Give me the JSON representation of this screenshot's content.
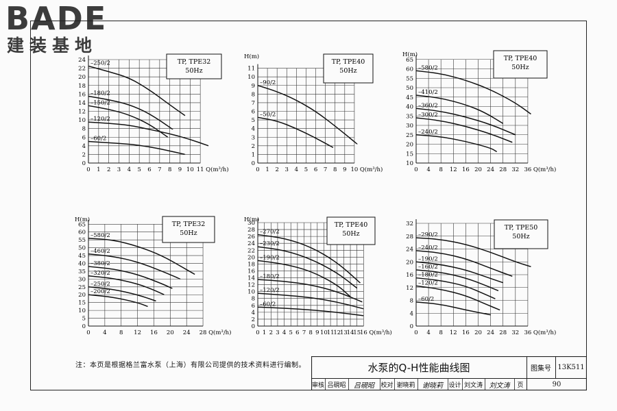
{
  "logo": {
    "main": "BADE",
    "sub": "建装基地"
  },
  "note": "注：本页是根据格兰富水泵（上海）有限公司提供的技术资料进行编制。",
  "title_block": {
    "title": "水泵的Q-H性能曲线图",
    "atlas_label": "图集号",
    "atlas_value": "13K511",
    "row": [
      {
        "label": "审核",
        "name": "吕硯昭",
        "signature": "吕硯昭"
      },
      {
        "label": "校对",
        "name": "谢晓莉",
        "signature": "谢晓莉"
      },
      {
        "label": "设计",
        "name": "刘文涛",
        "signature": "刘文涛"
      }
    ],
    "page_label": "页",
    "page_value": "90"
  },
  "chart_data": [
    {
      "type": "line",
      "legend": [
        "TP, TPE32",
        "50Hz"
      ],
      "ylabel": "",
      "xlabel": "Q(m³/h)",
      "xlim": [
        0,
        12
      ],
      "ylim": [
        0,
        24
      ],
      "xticks": [
        0,
        1,
        2,
        3,
        4,
        5,
        6,
        7,
        8,
        9,
        10,
        11
      ],
      "yticks": [
        0,
        2,
        4,
        6,
        8,
        10,
        12,
        14,
        16,
        18,
        20,
        22,
        24
      ],
      "series": [
        {
          "name": "250/2",
          "x": [
            0,
            2,
            4,
            6,
            8,
            9.5
          ],
          "y": [
            22.5,
            21.2,
            19.8,
            17,
            13.5,
            11
          ]
        },
        {
          "name": "180/2",
          "x": [
            0,
            2,
            4,
            6,
            8.3
          ],
          "y": [
            15.5,
            14.7,
            13.6,
            11.5,
            7.8
          ]
        },
        {
          "name": "150/2",
          "x": [
            0,
            2,
            4,
            6,
            7.8
          ],
          "y": [
            13.3,
            12.5,
            11.2,
            9,
            6
          ]
        },
        {
          "name": "120/2",
          "x": [
            0,
            2,
            4,
            6,
            8,
            10,
            11.8
          ],
          "y": [
            9.5,
            9.2,
            8.8,
            7.8,
            6.8,
            5.5,
            4
          ]
        },
        {
          "name": "60/2",
          "x": [
            0,
            2,
            4,
            6,
            8,
            9.5
          ],
          "y": [
            5,
            4.7,
            4.4,
            3.8,
            2.8,
            2
          ]
        }
      ]
    },
    {
      "type": "line",
      "legend": [
        "TP, TPE40",
        "50Hz"
      ],
      "ylabel": "H(m)",
      "xlabel": "Q(m³/h)",
      "xlim": [
        0,
        11
      ],
      "ylim": [
        0,
        12
      ],
      "xticks": [
        0,
        1,
        2,
        3,
        4,
        5,
        6,
        7,
        8,
        9,
        10
      ],
      "yticks": [
        0,
        1,
        2,
        3,
        4,
        5,
        6,
        7,
        8,
        9,
        10,
        11
      ],
      "series": [
        {
          "name": "90/2",
          "x": [
            0,
            2,
            4,
            6,
            8,
            10.3
          ],
          "y": [
            9,
            8.3,
            7.3,
            6,
            4.3,
            2.2
          ]
        },
        {
          "name": "50/2",
          "x": [
            0,
            2,
            4,
            6,
            7.8
          ],
          "y": [
            5.3,
            4.9,
            4,
            2.9,
            1.8
          ]
        }
      ]
    },
    {
      "type": "line",
      "legend": [
        "TP, TPE40",
        "50Hz"
      ],
      "ylabel": "H(m)",
      "xlabel": "Q(m³/h)",
      "xlim": [
        0,
        40
      ],
      "ylim": [
        10,
        66
      ],
      "xticks": [
        0,
        4,
        8,
        12,
        16,
        20,
        24,
        28,
        32,
        36
      ],
      "yticks": [
        10,
        15,
        20,
        25,
        30,
        35,
        40,
        45,
        50,
        55,
        60,
        65
      ],
      "series": [
        {
          "name": "580/2",
          "x": [
            0,
            8,
            16,
            24,
            32,
            37
          ],
          "y": [
            59,
            57.5,
            54,
            49,
            42,
            36
          ]
        },
        {
          "name": "410/2",
          "x": [
            0,
            8,
            16,
            22,
            28
          ],
          "y": [
            46,
            44.5,
            41,
            37,
            31
          ]
        },
        {
          "name": "360/2",
          "x": [
            0,
            8,
            16,
            24,
            32
          ],
          "y": [
            39,
            37.5,
            34.5,
            30.5,
            25
          ]
        },
        {
          "name": "300/2",
          "x": [
            0,
            8,
            16,
            24,
            31
          ],
          "y": [
            34,
            32.5,
            29.5,
            25.5,
            21
          ]
        },
        {
          "name": "240/2",
          "x": [
            0,
            8,
            16,
            24,
            26
          ],
          "y": [
            25,
            24,
            21.5,
            18,
            16
          ]
        }
      ]
    },
    {
      "type": "line",
      "legend": [
        "TP, TPE32",
        "50Hz"
      ],
      "ylabel": "H(m)",
      "xlabel": "Q(m³/h)",
      "xlim": [
        0,
        30
      ],
      "ylim": [
        0,
        66
      ],
      "xticks": [
        0,
        4,
        8,
        12,
        16,
        20,
        24,
        28
      ],
      "yticks": [
        0,
        5,
        10,
        15,
        20,
        25,
        30,
        35,
        40,
        45,
        50,
        55,
        60,
        65
      ],
      "series": [
        {
          "name": "580/2",
          "x": [
            0,
            6,
            12,
            18,
            24,
            26
          ],
          "y": [
            56,
            55,
            51,
            45,
            36,
            33
          ]
        },
        {
          "name": "460/2",
          "x": [
            0,
            6,
            12,
            18,
            22.5
          ],
          "y": [
            46,
            44.5,
            41,
            35,
            30
          ]
        },
        {
          "name": "380/2",
          "x": [
            0,
            6,
            12,
            18,
            20.5
          ],
          "y": [
            38,
            36.5,
            33,
            27,
            24
          ]
        },
        {
          "name": "320/2",
          "x": [
            0,
            6,
            12,
            16,
            18.5
          ],
          "y": [
            32,
            30.5,
            27,
            23,
            20
          ]
        },
        {
          "name": "250/2",
          "x": [
            0,
            6,
            12,
            16.5
          ],
          "y": [
            25,
            23.5,
            20,
            16
          ]
        },
        {
          "name": "200/2",
          "x": [
            0,
            6,
            12,
            14.5
          ],
          "y": [
            20,
            18.5,
            15,
            12.5
          ]
        }
      ]
    },
    {
      "type": "line",
      "legend": [
        "TP, TPE40",
        "50Hz"
      ],
      "ylabel": "H(m)",
      "xlabel": "Q(m³/h)",
      "xlim": [
        0,
        17
      ],
      "ylim": [
        0,
        30
      ],
      "xticks": [
        0,
        1,
        2,
        3,
        4,
        5,
        6,
        7,
        8,
        9,
        10,
        11,
        12,
        13,
        14,
        15,
        16
      ],
      "yticks": [
        0,
        2,
        4,
        6,
        8,
        10,
        12,
        14,
        16,
        18,
        20,
        22,
        24,
        26,
        28,
        30
      ],
      "series": [
        {
          "name": "270/2",
          "x": [
            0,
            4,
            8,
            12,
            15.5
          ],
          "y": [
            26.5,
            25.5,
            23,
            18.5,
            12.5
          ]
        },
        {
          "name": "230/2",
          "x": [
            0,
            4,
            8,
            12,
            15
          ],
          "y": [
            23,
            22,
            19.5,
            15.5,
            11
          ]
        },
        {
          "name": "190/2",
          "x": [
            0,
            4,
            8,
            12,
            14
          ],
          "y": [
            19,
            18,
            16,
            12,
            8.5
          ]
        },
        {
          "name": "180/2",
          "x": [
            0,
            4,
            8,
            12,
            15.8
          ],
          "y": [
            13.5,
            13,
            12,
            10,
            7
          ]
        },
        {
          "name": "120/2",
          "x": [
            0,
            4,
            8,
            12,
            16
          ],
          "y": [
            9.5,
            9,
            8.3,
            7,
            5
          ]
        },
        {
          "name": "60/2",
          "x": [
            0,
            4,
            8,
            12,
            16
          ],
          "y": [
            5.5,
            5.2,
            4.7,
            4,
            3
          ]
        }
      ]
    },
    {
      "type": "line",
      "legend": [
        "TP, TPE50",
        "50Hz"
      ],
      "ylabel": "",
      "xlabel": "Q(m³/h)",
      "xlim": [
        0,
        40
      ],
      "ylim": [
        0,
        32
      ],
      "xticks": [
        0,
        4,
        8,
        12,
        16,
        20,
        24,
        28,
        32,
        36
      ],
      "yticks": [
        0,
        4,
        8,
        12,
        16,
        20,
        24,
        28,
        32
      ],
      "series": [
        {
          "name": "290/2",
          "x": [
            0,
            8,
            16,
            24,
            32,
            37
          ],
          "y": [
            27.5,
            27,
            25.5,
            23,
            20,
            18.5
          ]
        },
        {
          "name": "240/2",
          "x": [
            0,
            8,
            16,
            24,
            31
          ],
          "y": [
            23.5,
            22.8,
            21,
            18,
            15.5
          ]
        },
        {
          "name": "190/2",
          "x": [
            0,
            8,
            16,
            22,
            28
          ],
          "y": [
            20,
            19.2,
            17.5,
            15.5,
            13.5
          ]
        },
        {
          "name": "160/2",
          "x": [
            0,
            8,
            16,
            22,
            26.5
          ],
          "y": [
            17.5,
            16.8,
            15,
            12.8,
            11
          ]
        },
        {
          "name": "180/2",
          "x": [
            0,
            8,
            16,
            22,
            25.5
          ],
          "y": [
            15,
            14.2,
            12.5,
            10,
            8.5
          ]
        },
        {
          "name": "120/2",
          "x": [
            0,
            8,
            16,
            22,
            27
          ],
          "y": [
            12.5,
            11.5,
            9.5,
            7,
            5
          ]
        },
        {
          "name": "60/2",
          "x": [
            0,
            8,
            16,
            24
          ],
          "y": [
            7.5,
            6.8,
            5,
            3.5
          ]
        }
      ]
    }
  ]
}
